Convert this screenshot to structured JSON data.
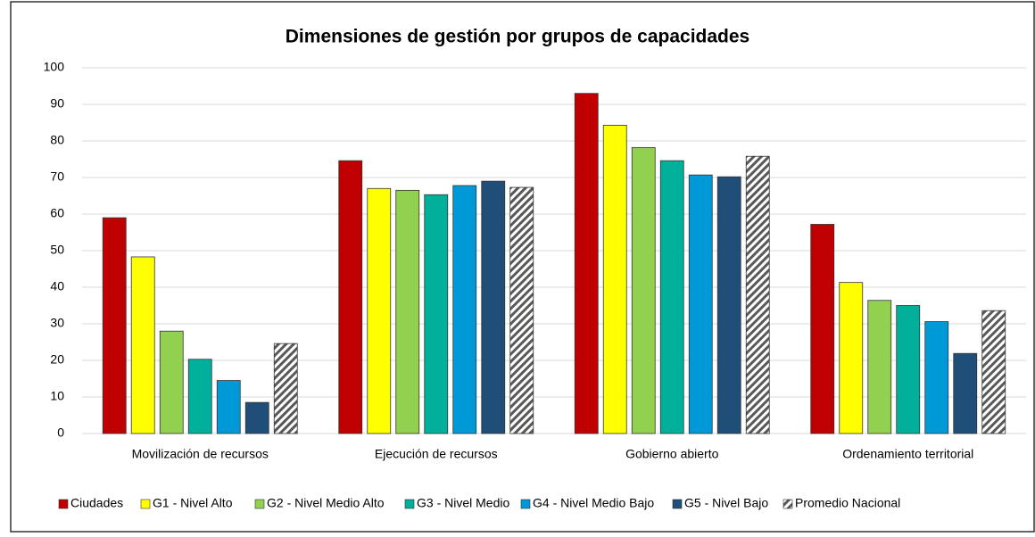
{
  "chart_data": {
    "type": "bar",
    "title": "Dimensiones de gestión por grupos de capacidades",
    "categories": [
      "Movilización de recursos",
      "Ejecución de recursos",
      "Gobierno abierto",
      "Ordenamiento territorial"
    ],
    "series": [
      {
        "name": "Ciudades",
        "color": "#c00000",
        "values": [
          59,
          74.6,
          93,
          57.2
        ]
      },
      {
        "name": "G1 - Nivel Alto",
        "color": "#ffff00",
        "values": [
          48.3,
          67,
          84.3,
          41.3
        ]
      },
      {
        "name": "G2 - Nivel Medio Alto",
        "color": "#92d050",
        "values": [
          28,
          66.5,
          78.2,
          36.4
        ]
      },
      {
        "name": "G3 - Nivel Medio",
        "color": "#00b09a",
        "values": [
          20.3,
          65.3,
          74.6,
          35
        ]
      },
      {
        "name": "G4 - Nivel Medio Bajo",
        "color": "#0099d8",
        "values": [
          14.5,
          67.8,
          70.7,
          30.6
        ]
      },
      {
        "name": "G5 - Nivel Bajo",
        "color": "#1f4e79",
        "values": [
          8.5,
          69,
          70.2,
          21.9
        ]
      },
      {
        "name": "Promedio Nacional",
        "color": "#595959",
        "values": [
          24.6,
          67.3,
          75.8,
          33.6
        ]
      }
    ],
    "ylim": [
      0,
      100
    ],
    "yticks": [
      0,
      10,
      20,
      30,
      40,
      50,
      60,
      70,
      80,
      90,
      100
    ],
    "grid": true,
    "legend": "bottom"
  }
}
